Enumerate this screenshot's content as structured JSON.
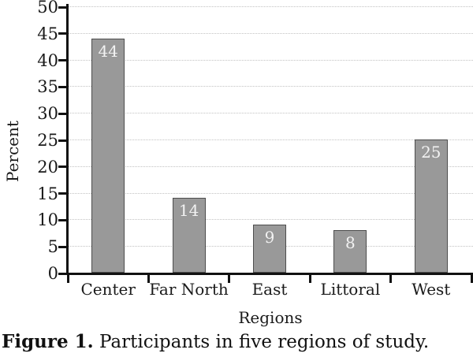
{
  "figure": {
    "caption_label": "Figure 1.",
    "caption_text": " Participants in five regions of study."
  },
  "chart_data": {
    "type": "bar",
    "title": "",
    "categories": [
      "Center",
      "Far North",
      "East",
      "Littoral",
      "West"
    ],
    "values": [
      44,
      14,
      9,
      8,
      25
    ],
    "bar_labels": [
      "44",
      "14",
      "9",
      "8",
      "25"
    ],
    "xlabel": "Regions",
    "ylabel": "Percent",
    "ylim": [
      0,
      50
    ],
    "yticks": [
      0,
      5,
      10,
      15,
      20,
      25,
      30,
      35,
      40,
      45,
      50
    ],
    "grid": "horizontal-dotted",
    "legend": "none",
    "colors": {
      "bar_fill": "#999999",
      "bar_border": "#4d4d4d",
      "bar_label": "#f2f2f2",
      "axis": "#111111",
      "grid": "#c2c2c2",
      "text": "#1a1a1a",
      "background": "#ffffff"
    }
  }
}
